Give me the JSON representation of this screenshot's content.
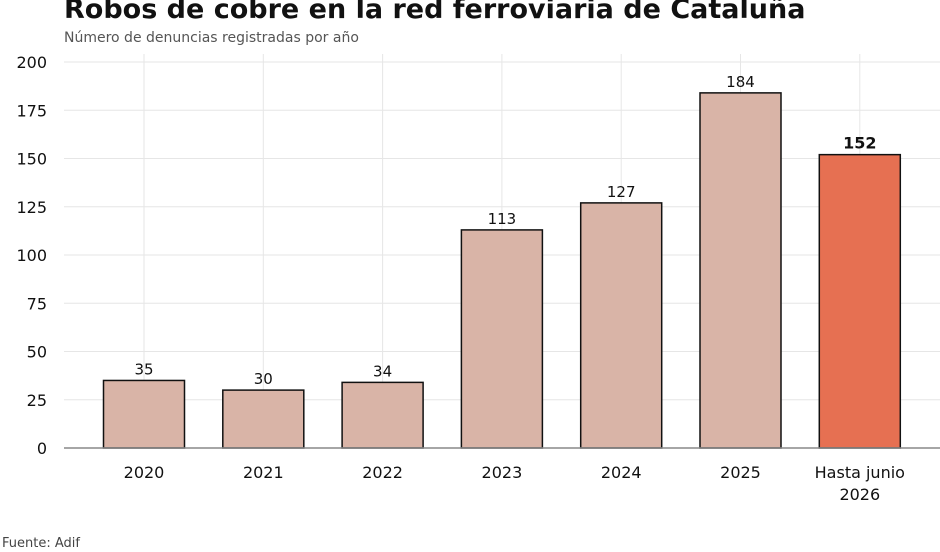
{
  "chart_data": {
    "type": "bar",
    "title": "Robos de cobre en la red ferroviaria de Cataluña",
    "subtitle": "Número de denuncias registradas por año",
    "source": "Fuente: Adif",
    "categories": [
      "2020",
      "2021",
      "2022",
      "2023",
      "2024",
      "2025",
      "Hasta junio\n2026"
    ],
    "values": [
      35,
      30,
      34,
      113,
      127,
      184,
      152
    ],
    "data_labels": [
      "35",
      "30",
      "34",
      "113",
      "127",
      "184",
      "152"
    ],
    "highlight_index": 6,
    "ylim": [
      0,
      200
    ],
    "yticks": [
      0,
      25,
      50,
      75,
      100,
      125,
      150,
      175,
      200
    ],
    "grid": true,
    "colors": {
      "bar": "#d9b4a7",
      "highlight": "#e67052",
      "edge": "#111111",
      "grid": "#e6e6e6",
      "axis": "#888888"
    }
  }
}
